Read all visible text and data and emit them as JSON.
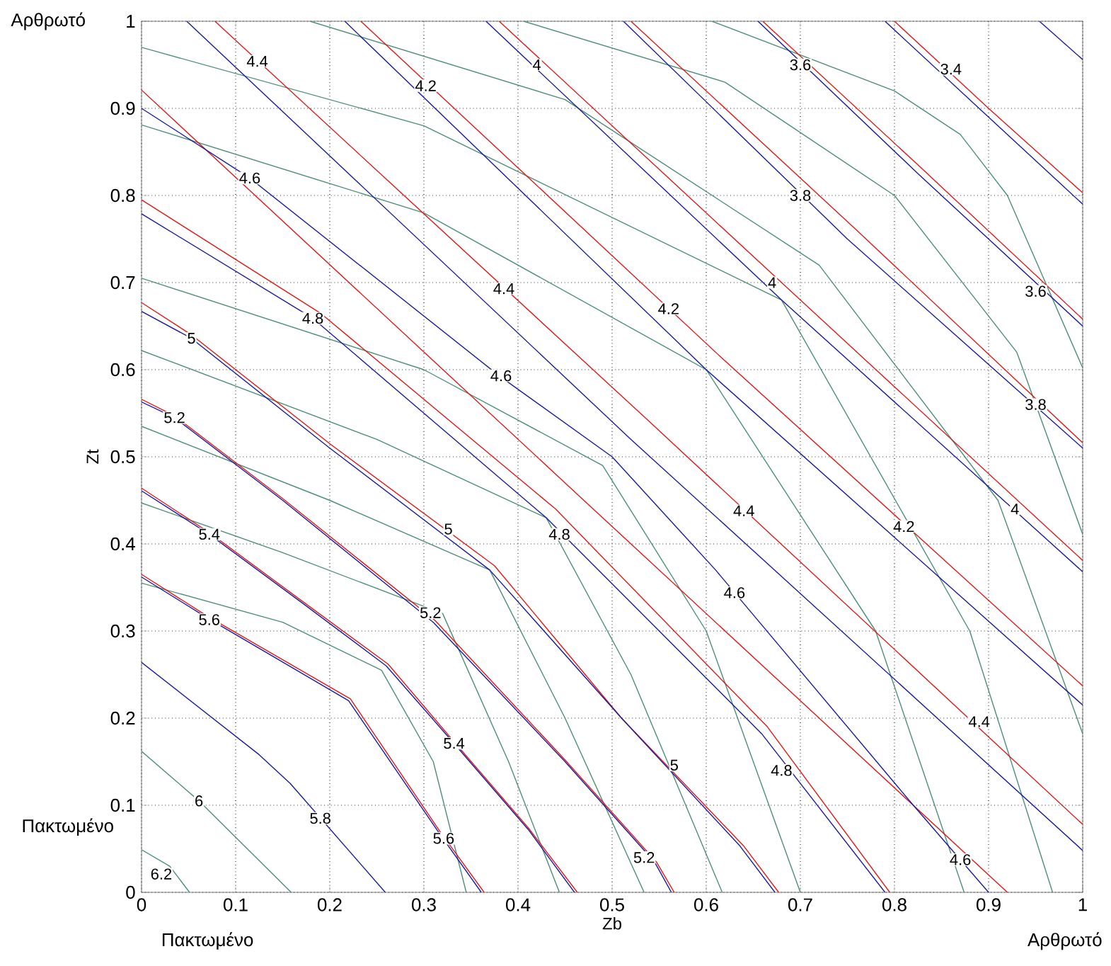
{
  "chart_data": {
    "type": "line",
    "xlabel": "Zb",
    "ylabel": "Zt",
    "xlim": [
      0,
      1
    ],
    "ylim": [
      0,
      1
    ],
    "xticks": [
      0,
      0.1,
      0.2,
      0.3,
      0.4,
      0.5,
      0.6,
      0.7,
      0.8,
      0.9,
      1
    ],
    "yticks": [
      0,
      0.1,
      0.2,
      0.3,
      0.4,
      0.5,
      0.6,
      0.7,
      0.8,
      0.9,
      1
    ],
    "grid": true,
    "marker": "none",
    "series": [
      {
        "color": "#4a8f78",
        "x": [
          0,
          0.03,
          0.051
        ],
        "values": [
          0.049,
          0.03,
          0
        ]
      },
      {
        "color": "#4a8f78",
        "x": [
          0,
          0.061,
          0.159
        ],
        "values": [
          0.162,
          0.105,
          0
        ]
      },
      {
        "color": "#1a1aa0",
        "x": [
          0,
          0.125,
          0.158,
          0.259
        ],
        "values": [
          0.264,
          0.158,
          0.125,
          0
        ]
      },
      {
        "color": "#4a8f78",
        "x": [
          0,
          0.15,
          0.255,
          0.31,
          0.345
        ],
        "values": [
          0.355,
          0.31,
          0.255,
          0.15,
          0
        ]
      },
      {
        "color": "#e01818",
        "x": [
          0,
          0.07,
          0.222,
          0.317,
          0.364
        ],
        "values": [
          0.365,
          0.317,
          0.222,
          0.07,
          0
        ]
      },
      {
        "color": "#1a1aa0",
        "x": [
          0,
          0.07,
          0.22,
          0.315,
          0.361
        ],
        "values": [
          0.362,
          0.315,
          0.22,
          0.07,
          0
        ]
      },
      {
        "color": "#4a8f78",
        "x": [
          0,
          0.15,
          0.32,
          0.39,
          0.444
        ],
        "values": [
          0.447,
          0.39,
          0.32,
          0.15,
          0
        ]
      },
      {
        "color": "#e01818",
        "x": [
          0,
          0.072,
          0.171,
          0.262,
          0.332,
          0.411,
          0.463
        ],
        "values": [
          0.464,
          0.413,
          0.334,
          0.262,
          0.173,
          0.074,
          0
        ]
      },
      {
        "color": "#1a1aa0",
        "x": [
          0,
          0.072,
          0.171,
          0.26,
          0.332,
          0.411,
          0.46
        ],
        "values": [
          0.461,
          0.411,
          0.332,
          0.26,
          0.171,
          0.072,
          0
        ]
      },
      {
        "color": "#4a8f78",
        "x": [
          0,
          0.2,
          0.37,
          0.45,
          0.534
        ],
        "values": [
          0.535,
          0.45,
          0.37,
          0.2,
          0
        ]
      },
      {
        "color": "#e01818",
        "x": [
          0,
          0.035,
          0.15,
          0.312,
          0.45,
          0.547,
          0.566
        ],
        "values": [
          0.566,
          0.547,
          0.452,
          0.312,
          0.152,
          0.035,
          0
        ]
      },
      {
        "color": "#1a1aa0",
        "x": [
          0,
          0.035,
          0.15,
          0.31,
          0.45,
          0.545,
          0.563
        ],
        "values": [
          0.563,
          0.545,
          0.45,
          0.31,
          0.15,
          0.035,
          0
        ]
      },
      {
        "color": "#4a8f78",
        "x": [
          0,
          0.25,
          0.43,
          0.52,
          0.617
        ],
        "values": [
          0.622,
          0.52,
          0.43,
          0.25,
          0
        ]
      },
      {
        "color": "#e01818",
        "x": [
          0,
          0.053,
          0.2,
          0.375,
          0.51,
          0.64,
          0.677
        ],
        "values": [
          0.677,
          0.64,
          0.515,
          0.375,
          0.2,
          0.053,
          0
        ]
      },
      {
        "color": "#1a1aa0",
        "x": [
          0,
          0.053,
          0.2,
          0.37,
          0.51,
          0.636,
          0.673
        ],
        "values": [
          0.667,
          0.636,
          0.51,
          0.37,
          0.2,
          0.053,
          0
        ]
      },
      {
        "color": "#4a8f78",
        "x": [
          0,
          0.3,
          0.49,
          0.6,
          0.7
        ],
        "values": [
          0.705,
          0.6,
          0.49,
          0.3,
          0
        ]
      },
      {
        "color": "#e01818",
        "x": [
          0,
          0.19,
          0.44,
          0.665,
          0.795
        ],
        "values": [
          0.795,
          0.665,
          0.44,
          0.19,
          0
        ]
      },
      {
        "color": "#1a1aa0",
        "x": [
          0,
          0.182,
          0.43,
          0.659,
          0.79
        ],
        "values": [
          0.779,
          0.659,
          0.43,
          0.182,
          0
        ]
      },
      {
        "color": "#4a8f78",
        "x": [
          0,
          0.3,
          0.6,
          0.78,
          0.874
        ],
        "values": [
          0.881,
          0.78,
          0.6,
          0.3,
          0
        ]
      },
      {
        "color": "#e01818",
        "x": [
          0,
          0.46,
          0.92
        ],
        "values": [
          0.921,
          0.46,
          0
        ]
      },
      {
        "color": "#1a1aa0",
        "x": [
          0,
          0.115,
          0.38,
          0.5,
          0.61,
          0.82,
          0.9
        ],
        "values": [
          0.9,
          0.82,
          0.593,
          0.5,
          0.37,
          0.1,
          0
        ]
      },
      {
        "color": "#4a8f78",
        "x": [
          0,
          0.3,
          0.68,
          0.88,
          0.968
        ],
        "values": [
          0.97,
          0.88,
          0.68,
          0.3,
          0
        ]
      },
      {
        "color": "#1a1aa0",
        "x": [
          0.048,
          0.52,
          1
        ],
        "values": [
          1,
          0.52,
          0.048
        ]
      },
      {
        "color": "#e01818",
        "x": [
          0.078,
          0.54,
          1
        ],
        "values": [
          1,
          0.54,
          0.078
        ]
      },
      {
        "color": "#4a8f78",
        "x": [
          0.179,
          0.45,
          0.72,
          0.91,
          1
        ],
        "values": [
          1,
          0.91,
          0.72,
          0.45,
          0.182
        ]
      },
      {
        "color": "#1a1aa0",
        "x": [
          0.216,
          0.6,
          1
        ],
        "values": [
          1,
          0.6,
          0.215
        ]
      },
      {
        "color": "#e01818",
        "x": [
          0.233,
          0.615,
          1
        ],
        "values": [
          1,
          0.615,
          0.237
        ]
      },
      {
        "color": "#1a1aa0",
        "x": [
          0.366,
          0.68,
          1
        ],
        "values": [
          1,
          0.68,
          0.368
        ]
      },
      {
        "color": "#e01818",
        "x": [
          0.38,
          0.69,
          1
        ],
        "values": [
          1,
          0.69,
          0.381
        ]
      },
      {
        "color": "#4a8f78",
        "x": [
          0.406,
          0.62,
          0.8,
          0.93,
          1
        ],
        "values": [
          1,
          0.93,
          0.8,
          0.62,
          0.411
        ]
      },
      {
        "color": "#1a1aa0",
        "x": [
          0.512,
          0.75,
          1
        ],
        "values": [
          1,
          0.75,
          0.51
        ]
      },
      {
        "color": "#e01818",
        "x": [
          0.52,
          0.76,
          1
        ],
        "values": [
          1,
          0.76,
          0.516
        ]
      },
      {
        "color": "#4a8f78",
        "x": [
          0.606,
          0.8,
          0.87,
          0.92,
          1
        ],
        "values": [
          1,
          0.92,
          0.87,
          0.8,
          0.602
        ]
      },
      {
        "color": "#1a1aa0",
        "x": [
          0.655,
          0.825,
          1
        ],
        "values": [
          1,
          0.825,
          0.65
        ]
      },
      {
        "color": "#e01818",
        "x": [
          0.66,
          0.83,
          1
        ],
        "values": [
          1,
          0.83,
          0.658
        ]
      },
      {
        "color": "#1a1aa0",
        "x": [
          0.79,
          0.895,
          1
        ],
        "values": [
          1,
          0.895,
          0.79
        ]
      },
      {
        "color": "#e01818",
        "x": [
          0.8,
          0.9,
          1
        ],
        "values": [
          1,
          0.9,
          0.803
        ]
      },
      {
        "color": "#1a1aa0",
        "x": [
          0.954,
          1
        ],
        "values": [
          1,
          0.956
        ]
      }
    ],
    "annotations": [
      "Αρθρωτό",
      "Πακτωμένο",
      "Πακτωμένο",
      "Αρθρωτό",
      {
        "text": "4.4",
        "x": 0.123,
        "y": 0.954
      },
      {
        "text": "4.2",
        "x": 0.302,
        "y": 0.926
      },
      {
        "text": "4",
        "x": 0.42,
        "y": 0.95
      },
      {
        "text": "3.6",
        "x": 0.7,
        "y": 0.95
      },
      {
        "text": "3.4",
        "x": 0.86,
        "y": 0.945
      },
      {
        "text": "4.6",
        "x": 0.115,
        "y": 0.82
      },
      {
        "text": "3.8",
        "x": 0.7,
        "y": 0.8
      },
      {
        "text": "4.4",
        "x": 0.385,
        "y": 0.693
      },
      {
        "text": "4",
        "x": 0.67,
        "y": 0.7
      },
      {
        "text": "3.6",
        "x": 0.95,
        "y": 0.69
      },
      {
        "text": "4.2",
        "x": 0.56,
        "y": 0.67
      },
      {
        "text": "4.8",
        "x": 0.182,
        "y": 0.659
      },
      {
        "text": "5",
        "x": 0.053,
        "y": 0.636
      },
      {
        "text": "4.6",
        "x": 0.382,
        "y": 0.593
      },
      {
        "text": "3.8",
        "x": 0.95,
        "y": 0.56
      },
      {
        "text": "5.2",
        "x": 0.035,
        "y": 0.545
      },
      {
        "text": "4.4",
        "x": 0.64,
        "y": 0.438
      },
      {
        "text": "4",
        "x": 0.928,
        "y": 0.44
      },
      {
        "text": "4.2",
        "x": 0.81,
        "y": 0.42
      },
      {
        "text": "5",
        "x": 0.326,
        "y": 0.417
      },
      {
        "text": "4.8",
        "x": 0.444,
        "y": 0.411
      },
      {
        "text": "5.4",
        "x": 0.072,
        "y": 0.411
      },
      {
        "text": "4.6",
        "x": 0.63,
        "y": 0.344
      },
      {
        "text": "5.2",
        "x": 0.307,
        "y": 0.321
      },
      {
        "text": "5.6",
        "x": 0.072,
        "y": 0.313
      },
      {
        "text": "4.4",
        "x": 0.89,
        "y": 0.196
      },
      {
        "text": "5.4",
        "x": 0.332,
        "y": 0.171
      },
      {
        "text": "5",
        "x": 0.566,
        "y": 0.146
      },
      {
        "text": "4.8",
        "x": 0.68,
        "y": 0.14
      },
      {
        "text": "5.8",
        "x": 0.19,
        "y": 0.085
      },
      {
        "text": "6",
        "x": 0.061,
        "y": 0.105
      },
      {
        "text": "5.6",
        "x": 0.321,
        "y": 0.062
      },
      {
        "text": "4.6",
        "x": 0.87,
        "y": 0.0375
      },
      {
        "text": "5.2",
        "x": 0.534,
        "y": 0.04
      },
      {
        "text": "6.2",
        "x": 0.021,
        "y": 0.021
      }
    ]
  }
}
